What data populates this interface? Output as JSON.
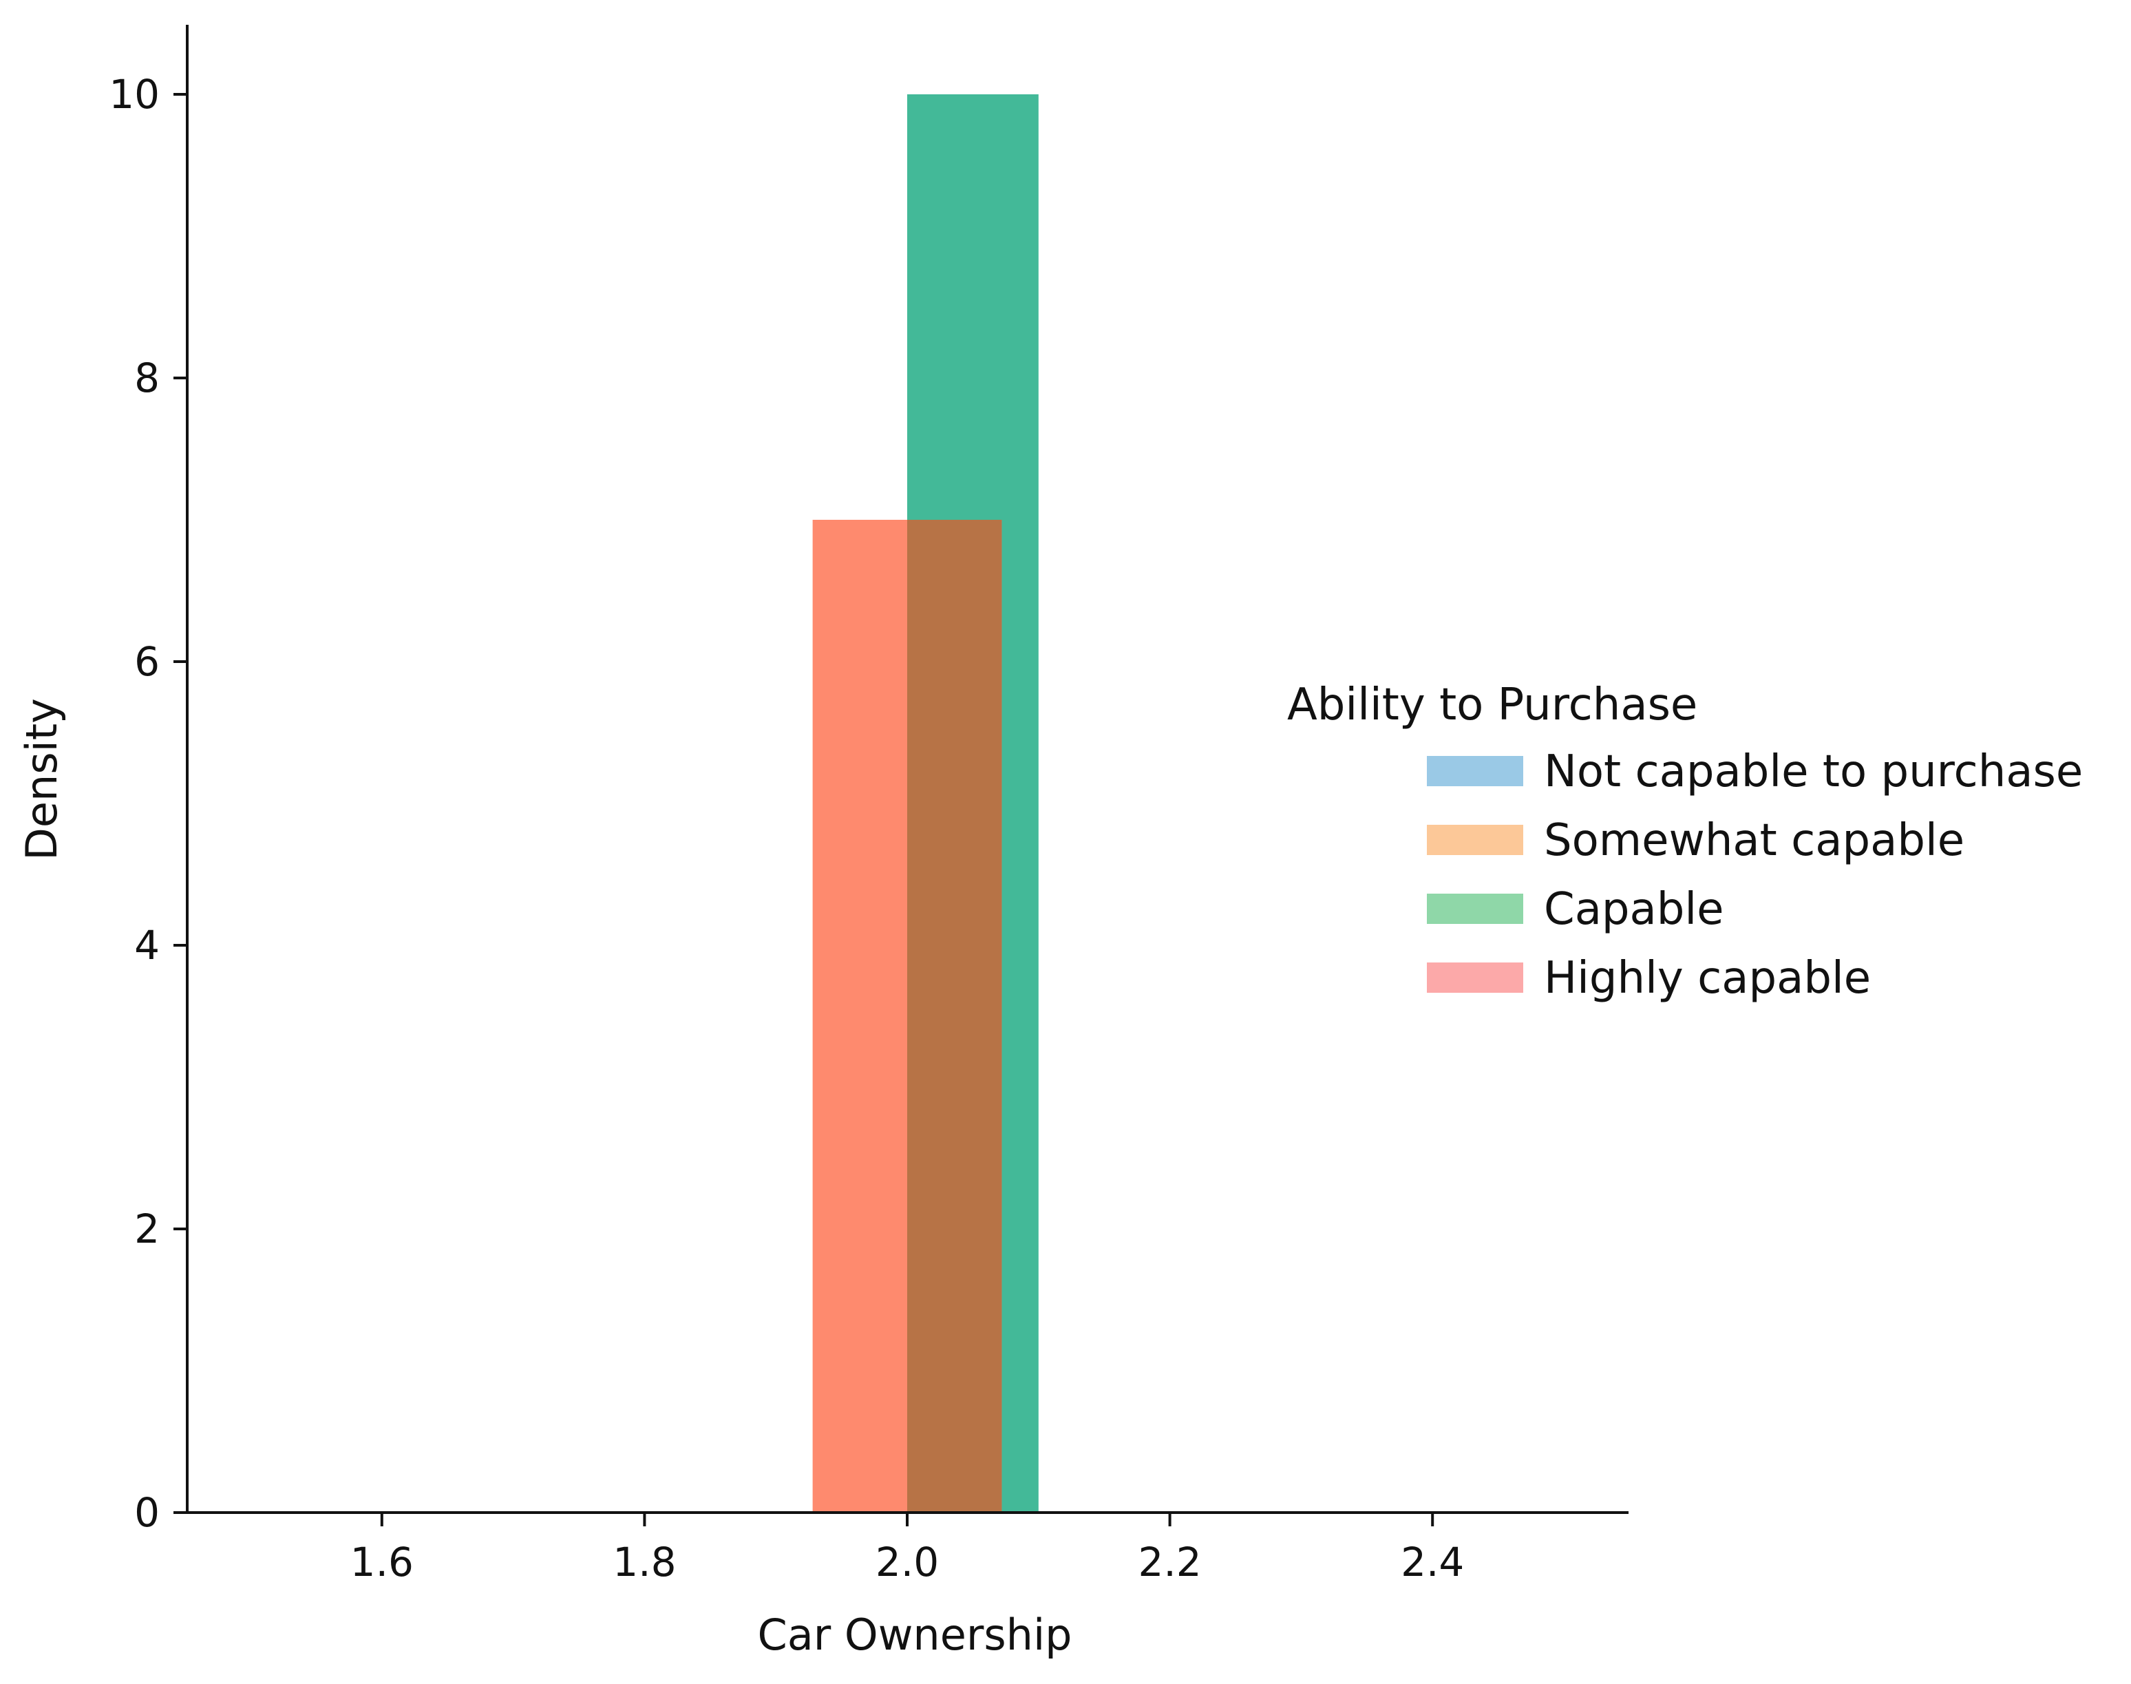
{
  "chart_data": {
    "type": "bar",
    "xlabel": "Car Ownership",
    "ylabel": "Density",
    "xlim": [
      1.45,
      2.55
    ],
    "ylim": [
      0,
      10.5
    ],
    "xticks": [
      1.6,
      1.8,
      2.0,
      2.2,
      2.4
    ],
    "yticks": [
      0,
      2,
      4,
      6,
      8,
      10
    ],
    "legend": {
      "title": "Ability to Purchase",
      "placement": "center-right",
      "entries": [
        {
          "label": "Not capable to purchase",
          "color": "#9ac9e6"
        },
        {
          "label": "Somewhat capable",
          "color": "#fcc898"
        },
        {
          "label": "Capable",
          "color": "#8fd7a8"
        },
        {
          "label": "Highly capable",
          "color": "#fca9a9"
        }
      ]
    },
    "series": [
      {
        "name": "Capable",
        "color": "#43b998",
        "x0": 2.0,
        "x1": 2.1,
        "y": 10
      },
      {
        "name": "Highly capable",
        "color": "#fe8a6e",
        "x0": 1.928,
        "x1": 2.072,
        "y": 7
      }
    ],
    "overlap_color": "#b77346"
  }
}
